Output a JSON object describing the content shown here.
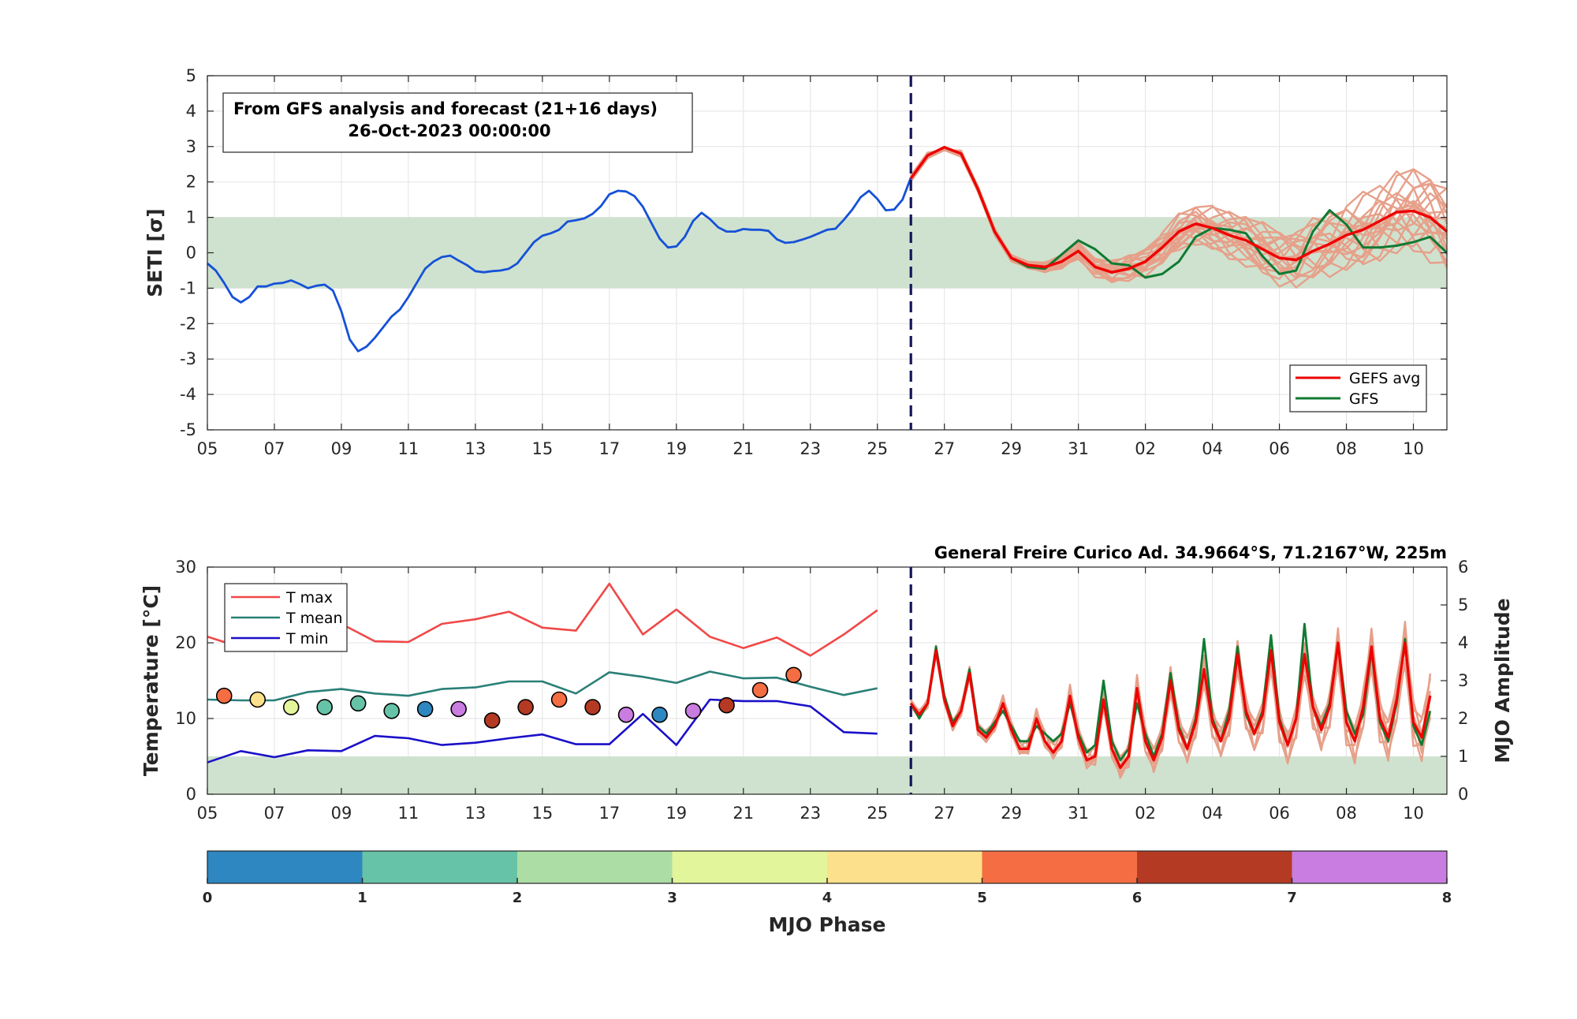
{
  "chart_data": [
    {
      "type": "line",
      "panel": "seti",
      "annotation_line1": "From GFS analysis and forecast (21+16 days)",
      "annotation_line2": "26-Oct-2023 00:00:00",
      "ylabel": "SETI [σ]",
      "ylim": [
        -5,
        5
      ],
      "yticks": [
        "5",
        "4",
        "3",
        "2",
        "1",
        "0",
        "-1",
        "-2",
        "-3",
        "-4",
        "-5"
      ],
      "x_start": "2023-10-05",
      "x_end": "2023-11-11",
      "xtick_labels": [
        "05",
        "07",
        "09",
        "11",
        "13",
        "15",
        "17",
        "19",
        "21",
        "23",
        "25",
        "27",
        "29",
        "31",
        "02",
        "04",
        "06",
        "08",
        "10"
      ],
      "shaded_band": [
        -1,
        1
      ],
      "shade_color": "#cfe2cf",
      "forecast_start": "2023-10-26",
      "legend": [
        "GEFS avg",
        "GFS"
      ],
      "legend_position": "bottom-right",
      "colors": {
        "analysis": "#1551d8",
        "gefs_avg": "#ee0000",
        "gfs": "#107a32",
        "members": "#e6a08a"
      },
      "series": [
        {
          "name": "analysis",
          "x": [
            "2023-10-05",
            "2023-10-05 06:00",
            "2023-10-05 12:00",
            "2023-10-05 18:00",
            "2023-10-06",
            "2023-10-06 06:00",
            "2023-10-06 12:00",
            "2023-10-06 18:00",
            "2023-10-07",
            "2023-10-07 06:00",
            "2023-10-07 12:00",
            "2023-10-07 18:00",
            "2023-10-08",
            "2023-10-08 06:00",
            "2023-10-08 12:00",
            "2023-10-08 18:00",
            "2023-10-09",
            "2023-10-09 06:00",
            "2023-10-09 12:00",
            "2023-10-09 18:00",
            "2023-10-10",
            "2023-10-10 06:00",
            "2023-10-10 12:00",
            "2023-10-10 18:00",
            "2023-10-11",
            "2023-10-11 06:00",
            "2023-10-11 12:00",
            "2023-10-11 18:00",
            "2023-10-12",
            "2023-10-12 06:00",
            "2023-10-12 12:00",
            "2023-10-12 18:00",
            "2023-10-13",
            "2023-10-13 06:00",
            "2023-10-13 12:00",
            "2023-10-13 18:00",
            "2023-10-14",
            "2023-10-14 06:00",
            "2023-10-14 12:00",
            "2023-10-14 18:00",
            "2023-10-15",
            "2023-10-15 06:00",
            "2023-10-15 12:00",
            "2023-10-15 18:00",
            "2023-10-16",
            "2023-10-16 06:00",
            "2023-10-16 12:00",
            "2023-10-16 18:00",
            "2023-10-17",
            "2023-10-17 06:00",
            "2023-10-17 12:00",
            "2023-10-17 18:00",
            "2023-10-18",
            "2023-10-18 06:00",
            "2023-10-18 12:00",
            "2023-10-18 18:00",
            "2023-10-19",
            "2023-10-19 06:00",
            "2023-10-19 12:00",
            "2023-10-19 18:00",
            "2023-10-20",
            "2023-10-20 06:00",
            "2023-10-20 12:00",
            "2023-10-20 18:00",
            "2023-10-21",
            "2023-10-21 06:00",
            "2023-10-21 12:00",
            "2023-10-21 18:00",
            "2023-10-22",
            "2023-10-22 06:00",
            "2023-10-22 12:00",
            "2023-10-22 18:00",
            "2023-10-23",
            "2023-10-23 06:00",
            "2023-10-23 12:00",
            "2023-10-23 18:00",
            "2023-10-24",
            "2023-10-24 06:00",
            "2023-10-24 12:00",
            "2023-10-24 18:00",
            "2023-10-25",
            "2023-10-25 06:00",
            "2023-10-25 12:00",
            "2023-10-25 18:00",
            "2023-10-26"
          ],
          "values": [
            -0.3,
            -0.5,
            -0.85,
            -1.25,
            -1.4,
            -1.25,
            -0.95,
            -0.95,
            -0.87,
            -0.85,
            -0.78,
            -0.88,
            -1.0,
            -0.93,
            -0.9,
            -1.07,
            -1.65,
            -2.45,
            -2.78,
            -2.65,
            -2.4,
            -2.1,
            -1.8,
            -1.6,
            -1.25,
            -0.85,
            -0.45,
            -0.25,
            -0.12,
            -0.08,
            -0.22,
            -0.35,
            -0.52,
            -0.55,
            -0.52,
            -0.5,
            -0.45,
            -0.3,
            0.0,
            0.3,
            0.48,
            0.55,
            0.65,
            0.88,
            0.92,
            0.97,
            1.1,
            1.32,
            1.65,
            1.75,
            1.73,
            1.6,
            1.3,
            0.85,
            0.4,
            0.15,
            0.18,
            0.45,
            0.9,
            1.13,
            0.95,
            0.72,
            0.6,
            0.6,
            0.67,
            0.65,
            0.65,
            0.62,
            0.38,
            0.28,
            0.3,
            0.37,
            0.45,
            0.55,
            0.65,
            0.68,
            0.93,
            1.22,
            1.57,
            1.75,
            1.52,
            1.2,
            1.22,
            1.5,
            2.12
          ]
        },
        {
          "name": "GEFS avg",
          "x": [
            "2023-10-26",
            "2023-10-26 12:00",
            "2023-10-27",
            "2023-10-27 12:00",
            "2023-10-28",
            "2023-10-28 12:00",
            "2023-10-29",
            "2023-10-29 12:00",
            "2023-10-30",
            "2023-10-30 12:00",
            "2023-10-31",
            "2023-10-31 12:00",
            "2023-11-01",
            "2023-11-01 12:00",
            "2023-11-02",
            "2023-11-02 12:00",
            "2023-11-03",
            "2023-11-03 12:00",
            "2023-11-04",
            "2023-11-04 12:00",
            "2023-11-05",
            "2023-11-05 12:00",
            "2023-11-06",
            "2023-11-06 12:00",
            "2023-11-07",
            "2023-11-07 12:00",
            "2023-11-08",
            "2023-11-08 12:00",
            "2023-11-09",
            "2023-11-09 12:00",
            "2023-11-10",
            "2023-11-10 12:00",
            "2023-11-11"
          ],
          "values": [
            2.1,
            2.75,
            2.98,
            2.8,
            1.8,
            0.6,
            -0.15,
            -0.35,
            -0.4,
            -0.25,
            0.05,
            -0.4,
            -0.55,
            -0.45,
            -0.25,
            0.15,
            0.6,
            0.82,
            0.7,
            0.5,
            0.35,
            0.1,
            -0.15,
            -0.2,
            0.05,
            0.25,
            0.5,
            0.65,
            0.9,
            1.15,
            1.18,
            1.0,
            0.6
          ]
        },
        {
          "name": "GFS",
          "x": [
            "2023-10-26",
            "2023-10-26 12:00",
            "2023-10-27",
            "2023-10-27 12:00",
            "2023-10-28",
            "2023-10-28 12:00",
            "2023-10-29",
            "2023-10-29 12:00",
            "2023-10-30",
            "2023-10-30 12:00",
            "2023-10-31",
            "2023-10-31 12:00",
            "2023-11-01",
            "2023-11-01 12:00",
            "2023-11-02",
            "2023-11-02 12:00",
            "2023-11-03",
            "2023-11-03 12:00",
            "2023-11-04",
            "2023-11-04 12:00",
            "2023-11-05",
            "2023-11-05 12:00",
            "2023-11-06",
            "2023-11-06 12:00",
            "2023-11-07",
            "2023-11-07 12:00",
            "2023-11-08",
            "2023-11-08 12:00",
            "2023-11-09",
            "2023-11-09 12:00",
            "2023-11-10",
            "2023-11-10 12:00",
            "2023-11-11"
          ],
          "values": [
            2.1,
            2.75,
            2.98,
            2.8,
            1.8,
            0.6,
            -0.15,
            -0.4,
            -0.45,
            -0.05,
            0.35,
            0.1,
            -0.3,
            -0.35,
            -0.7,
            -0.6,
            -0.25,
            0.45,
            0.7,
            0.65,
            0.55,
            -0.1,
            -0.6,
            -0.5,
            0.6,
            1.2,
            0.8,
            0.15,
            0.15,
            0.2,
            0.3,
            0.45,
            0.0
          ]
        }
      ]
    },
    {
      "type": "line",
      "panel": "temperature",
      "title": "General Freire Curico Ad. 34.9664°S, 71.2167°W, 225m",
      "ylabel": "Temperature [°C]",
      "ylim": [
        0,
        30
      ],
      "yticks": [
        "30",
        "20",
        "10",
        "0"
      ],
      "y2label": "MJO Amplitude",
      "y2lim": [
        0,
        6
      ],
      "y2ticks": [
        "6",
        "5",
        "4",
        "3",
        "2",
        "1",
        "0"
      ],
      "mjo_shaded_band": [
        0,
        1
      ],
      "x_start": "2023-10-05",
      "x_end": "2023-11-11",
      "xtick_labels": [
        "05",
        "07",
        "09",
        "11",
        "13",
        "15",
        "17",
        "19",
        "21",
        "23",
        "25",
        "27",
        "29",
        "31",
        "02",
        "04",
        "06",
        "08",
        "10"
      ],
      "legend": [
        "T max",
        "T mean",
        "T min"
      ],
      "legend_position": "top-left",
      "forecast_start": "2023-10-26",
      "colors": {
        "tmax": "#f04848",
        "tmean": "#2a7f78",
        "tmin": "#1a10c8",
        "fc_mean": "#ee0000",
        "fc_gfs": "#107a32",
        "members": "#e6a08a"
      },
      "days": [
        "2023-10-05",
        "2023-10-06",
        "2023-10-07",
        "2023-10-08",
        "2023-10-09",
        "2023-10-10",
        "2023-10-11",
        "2023-10-12",
        "2023-10-13",
        "2023-10-14",
        "2023-10-15",
        "2023-10-16",
        "2023-10-17",
        "2023-10-18",
        "2023-10-19",
        "2023-10-20",
        "2023-10-21",
        "2023-10-22",
        "2023-10-23",
        "2023-10-24",
        "2023-10-25"
      ],
      "series": [
        {
          "name": "T max",
          "values": [
            20.8,
            19.4,
            20.2,
            22.5,
            22.5,
            20.2,
            20.1,
            22.5,
            23.1,
            24.1,
            22.0,
            21.6,
            27.8,
            21.1,
            24.4,
            20.8,
            19.3,
            20.7,
            18.3,
            21.1,
            24.3
          ]
        },
        {
          "name": "T mean",
          "values": [
            12.5,
            12.4,
            12.4,
            13.5,
            13.9,
            13.3,
            13.0,
            13.9,
            14.1,
            14.9,
            14.9,
            13.3,
            16.1,
            15.5,
            14.7,
            16.2,
            15.3,
            15.4,
            14.2,
            13.1,
            14.0
          ]
        },
        {
          "name": "T min",
          "values": [
            4.2,
            5.7,
            4.9,
            5.8,
            5.7,
            7.7,
            7.4,
            6.5,
            6.8,
            7.4,
            7.9,
            6.6,
            6.6,
            10.6,
            6.5,
            12.5,
            12.3,
            12.3,
            11.6,
            8.2,
            8.0
          ]
        },
        {
          "name": "forecast mean",
          "x_start": "2023-10-26",
          "step_hours": 6,
          "values": [
            12,
            10.5,
            12,
            19,
            12.5,
            9,
            11,
            16,
            8.5,
            7.5,
            9,
            12,
            8.5,
            6,
            6,
            10,
            7,
            5.5,
            7,
            13,
            7.5,
            4.5,
            5,
            12.5,
            6,
            3.5,
            5,
            14,
            7,
            4.5,
            7.5,
            15,
            8.5,
            6,
            9.5,
            16.5,
            9.5,
            7,
            10,
            18.5,
            11,
            8,
            10.5,
            19,
            9.5,
            6.5,
            10,
            18.5,
            11.5,
            8.5,
            11.5,
            20,
            9.5,
            7,
            11.5,
            19.5,
            10,
            7.5,
            12.5,
            20,
            9.5,
            7.5,
            13
          ]
        },
        {
          "name": "forecast GFS",
          "x_start": "2023-10-26",
          "step_hours": 6,
          "values": [
            12,
            10,
            12,
            19.5,
            13,
            9.5,
            11,
            16.5,
            9,
            8,
            9.5,
            11,
            9,
            7,
            7,
            9,
            8,
            7,
            8,
            12,
            8,
            5.5,
            6.5,
            15,
            7,
            4.5,
            6,
            12,
            8,
            5,
            8,
            16,
            9,
            6,
            10,
            20.5,
            10,
            7,
            11,
            19.5,
            10.5,
            8,
            11,
            21,
            10,
            6.5,
            10,
            22.5,
            11.5,
            9,
            12,
            20,
            11,
            8,
            10.5,
            19,
            9.5,
            7,
            12,
            20.5,
            9,
            6.5,
            11
          ]
        }
      ],
      "mjo_points": [
        {
          "date": "2023-10-05 12:00",
          "amplitude": 2.6,
          "phase": 5
        },
        {
          "date": "2023-10-06 12:00",
          "amplitude": 2.5,
          "phase": 4
        },
        {
          "date": "2023-10-07 12:00",
          "amplitude": 2.3,
          "phase": 3
        },
        {
          "date": "2023-10-08 12:00",
          "amplitude": 2.3,
          "phase": 1
        },
        {
          "date": "2023-10-09 12:00",
          "amplitude": 2.4,
          "phase": 1
        },
        {
          "date": "2023-10-10 12:00",
          "amplitude": 2.2,
          "phase": 1
        },
        {
          "date": "2023-10-11 12:00",
          "amplitude": 2.25,
          "phase": 0
        },
        {
          "date": "2023-10-12 12:00",
          "amplitude": 2.25,
          "phase": 7
        },
        {
          "date": "2023-10-13 12:00",
          "amplitude": 1.95,
          "phase": 6
        },
        {
          "date": "2023-10-14 12:00",
          "amplitude": 2.3,
          "phase": 6
        },
        {
          "date": "2023-10-15 12:00",
          "amplitude": 2.5,
          "phase": 5
        },
        {
          "date": "2023-10-16 12:00",
          "amplitude": 2.3,
          "phase": 6
        },
        {
          "date": "2023-10-17 12:00",
          "amplitude": 2.1,
          "phase": 7
        },
        {
          "date": "2023-10-18 12:00",
          "amplitude": 2.1,
          "phase": 0
        },
        {
          "date": "2023-10-19 12:00",
          "amplitude": 2.2,
          "phase": 7
        },
        {
          "date": "2023-10-20 12:00",
          "amplitude": 2.35,
          "phase": 6
        },
        {
          "date": "2023-10-21 12:00",
          "amplitude": 2.75,
          "phase": 5
        },
        {
          "date": "2023-10-22 12:00",
          "amplitude": 3.15,
          "phase": 5
        }
      ]
    },
    {
      "type": "colorbar",
      "label": "MJO Phase",
      "tick_labels": [
        "0",
        "1",
        "2",
        "3",
        "4",
        "5",
        "6",
        "7",
        "8"
      ],
      "colors": [
        "#2e87c0",
        "#67c3a7",
        "#acdda4",
        "#e3f59a",
        "#fde08b",
        "#f46d43",
        "#b53a23",
        "#c97de0"
      ]
    }
  ]
}
